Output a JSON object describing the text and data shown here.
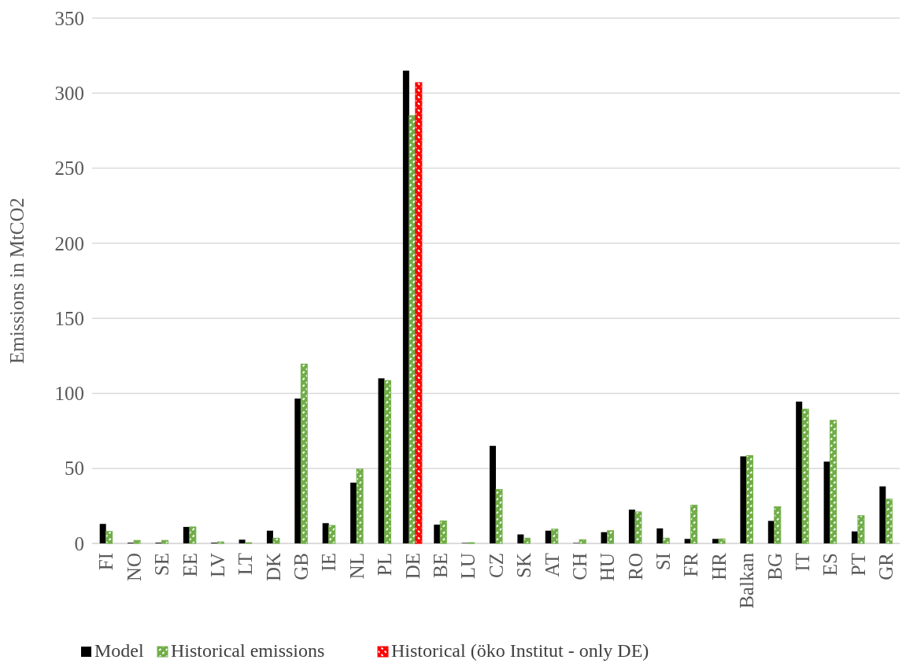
{
  "chart_data": {
    "type": "bar",
    "ylabel": "Emissions in MtCO2",
    "categories": [
      "FI",
      "NO",
      "SE",
      "EE",
      "LV",
      "LT",
      "DK",
      "GB",
      "IE",
      "NL",
      "PL",
      "DE",
      "BE",
      "LU",
      "CZ",
      "SK",
      "AT",
      "CH",
      "HU",
      "RO",
      "SI",
      "FR",
      "HR",
      "Balkan",
      "BG",
      "IT",
      "ES",
      "PT",
      "GR"
    ],
    "series": [
      {
        "name": "Model",
        "color": "#000000",
        "values": [
          13,
          0.5,
          0.5,
          11,
          0.5,
          2.5,
          8.5,
          96.5,
          13.5,
          40.5,
          110,
          315,
          12.5,
          0.3,
          65,
          6,
          8.5,
          0.3,
          7.5,
          22.5,
          10,
          3,
          3,
          58,
          15,
          94.5,
          54.5,
          8,
          38
        ]
      },
      {
        "name": "Historical emissions",
        "color": "#70ad47",
        "values": [
          8,
          2,
          2,
          11,
          1,
          0.5,
          3.5,
          119.5,
          12,
          49.5,
          108.5,
          285,
          15,
          0.5,
          36,
          3.5,
          9.5,
          2.5,
          8.5,
          21,
          3.5,
          25.5,
          3,
          58.5,
          24.5,
          89.5,
          82,
          18.5,
          29.5
        ]
      },
      {
        "name": "Historical (öko Institut - only DE)",
        "color": "#ff0000",
        "values": [
          null,
          null,
          null,
          null,
          null,
          null,
          null,
          null,
          null,
          null,
          null,
          307,
          null,
          null,
          null,
          null,
          null,
          null,
          null,
          null,
          null,
          null,
          null,
          null,
          null,
          null,
          null,
          null,
          null
        ]
      }
    ],
    "ylim": [
      0,
      350
    ],
    "yticks": [
      0,
      50,
      100,
      150,
      200,
      250,
      300,
      350
    ],
    "grid": "y",
    "legend": "bottom"
  }
}
